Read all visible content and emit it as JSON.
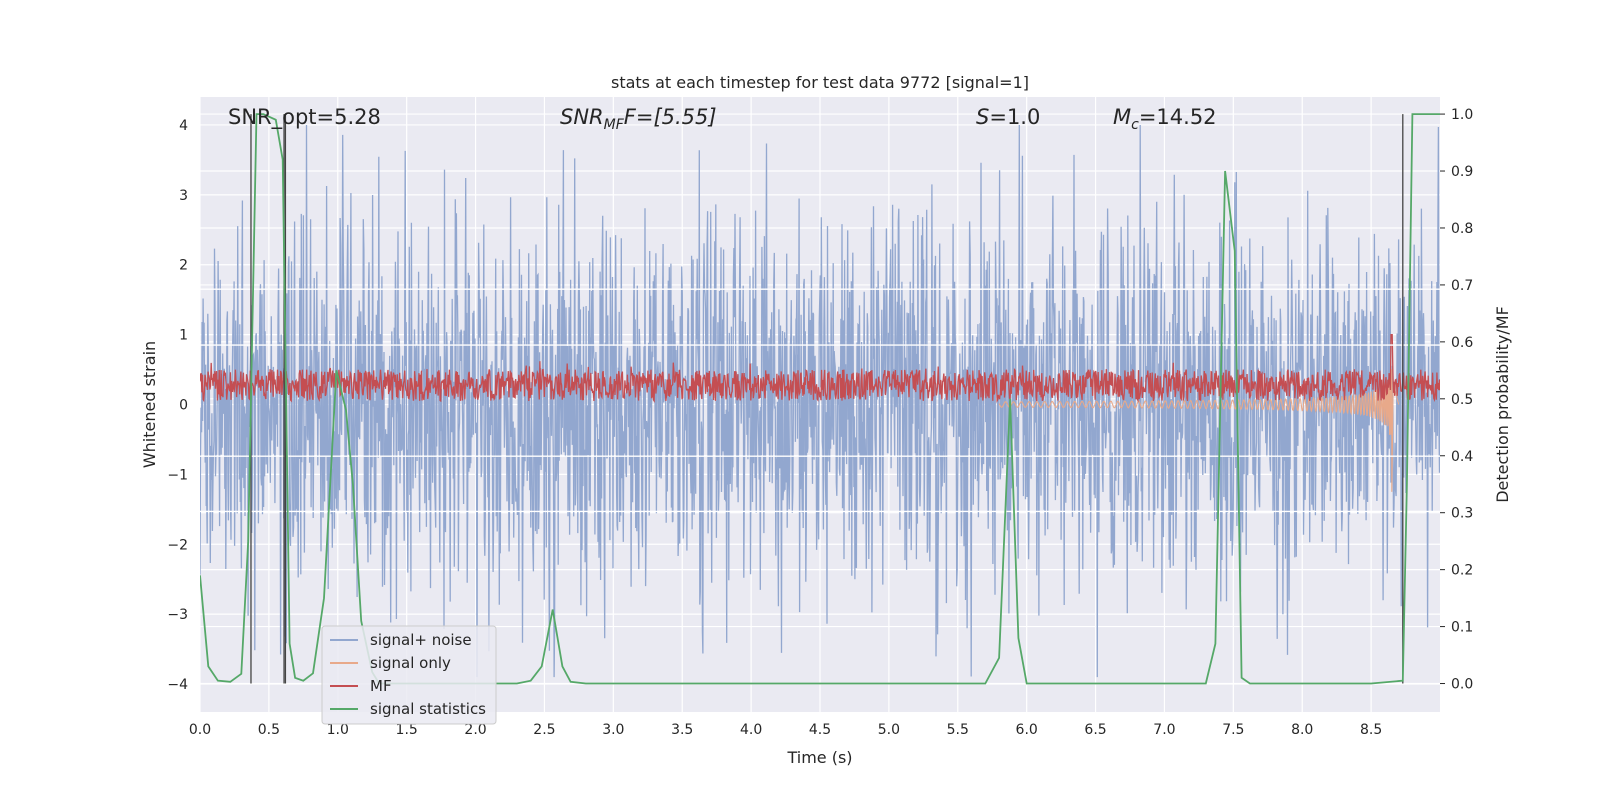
{
  "chart_data": {
    "type": "line",
    "title": "stats at each timestep for test data 9772 [signal=1]",
    "xlabel": "Time (s)",
    "ylabel_left": "Whitened strain",
    "ylabel_right": "Detection probability/MF",
    "xlim": [
      0,
      9.0
    ],
    "ylim_left": [
      -4.4,
      4.4
    ],
    "ylim_right": [
      -0.05,
      1.03
    ],
    "x_ticks": [
      "0.0",
      "0.5",
      "1.0",
      "1.5",
      "2.0",
      "2.5",
      "3.0",
      "3.5",
      "4.0",
      "4.5",
      "5.0",
      "5.5",
      "6.0",
      "6.5",
      "7.0",
      "7.5",
      "8.0",
      "8.5"
    ],
    "y_ticks_left": [
      "4",
      "3",
      "2",
      "1",
      "0",
      "−1",
      "−2",
      "−3",
      "−4"
    ],
    "y_ticks_right": [
      "1.0",
      "0.9",
      "0.8",
      "0.7",
      "0.6",
      "0.5",
      "0.4",
      "0.3",
      "0.2",
      "0.1",
      "0.0"
    ],
    "grid": true,
    "legend_position": "lower-left",
    "annotations": {
      "snr_opt": "SNR_opt=5.28",
      "snr_mf_name": "SNR",
      "snr_mf_sub": "MF",
      "snr_mf_rest": "F=[5.55]",
      "s_name": "S",
      "s_rest": "=1.0",
      "mc_name": "M",
      "mc_sub": "c",
      "mc_rest": "=14.52"
    },
    "series": [
      {
        "name": "signal+ noise",
        "color": "#92a7cf",
        "description_type": "noise",
        "envelope_min": -3.9,
        "envelope_max": 4.0
      },
      {
        "name": "signal only",
        "color": "#e8a98a",
        "description_type": "chirp",
        "x_start": 5.8,
        "x_merge": 8.65,
        "y_min_at_merge": -1.25,
        "y_max_at_merge": 1.0
      },
      {
        "name": "MF",
        "color": "#c44e52",
        "description_type": "noise-band",
        "band_low": 0.05,
        "band_high": 0.5,
        "peak_x": 8.65,
        "peak_y": 1.0
      },
      {
        "name": "signal statistics",
        "color": "#55a868",
        "x": [
          0.0,
          0.06,
          0.13,
          0.22,
          0.3,
          0.35,
          0.41,
          0.46,
          0.55,
          0.6,
          0.65,
          0.69,
          0.75,
          0.82,
          0.9,
          0.99,
          1.06,
          1.11,
          1.17,
          1.25,
          1.3,
          1.4,
          1.5,
          1.7,
          1.9,
          2.1,
          2.3,
          2.4,
          2.48,
          2.56,
          2.63,
          2.69,
          2.8,
          3.0,
          3.5,
          4.0,
          4.5,
          5.0,
          5.5,
          5.7,
          5.8,
          5.88,
          5.94,
          6.0,
          6.5,
          7.0,
          7.3,
          7.37,
          7.44,
          7.51,
          7.56,
          7.62,
          7.7,
          8.0,
          8.5,
          8.73,
          8.76,
          8.8,
          8.85,
          8.9,
          9.0
        ],
        "y": [
          0.19,
          0.03,
          0.005,
          0.003,
          0.017,
          0.25,
          1.0,
          1.0,
          0.99,
          0.92,
          0.07,
          0.01,
          0.005,
          0.018,
          0.15,
          0.55,
          0.48,
          0.35,
          0.11,
          0.02,
          0.0,
          0.0,
          0.0,
          0.0,
          0.0,
          0.0,
          0.0,
          0.005,
          0.03,
          0.13,
          0.03,
          0.003,
          0.0,
          0.0,
          0.0,
          0.0,
          0.0,
          0.0,
          0.0,
          0.0,
          0.045,
          0.5,
          0.08,
          0.0,
          0.0,
          0.0,
          0.0,
          0.07,
          0.9,
          0.76,
          0.01,
          0.0,
          0.0,
          0.0,
          0.0,
          0.005,
          0.35,
          1.0,
          1.0,
          1.0,
          1.0
        ]
      }
    ],
    "vertical_lines_x": [
      0.37,
      0.61,
      0.62,
      8.73
    ],
    "band_lines_left": [
      1.65,
      0.85,
      -0.74,
      -1.53
    ]
  }
}
